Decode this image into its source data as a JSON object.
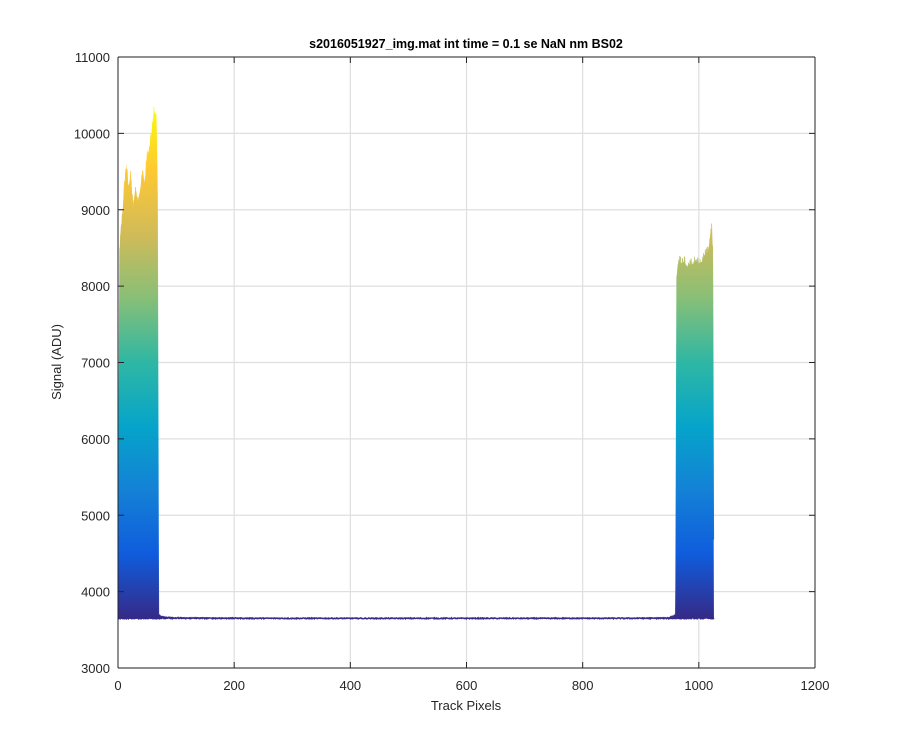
{
  "chart_data": {
    "type": "area",
    "title": "s2016051927_img.mat int time = 0.1 se  NaN nm BS02",
    "xlabel": "Track Pixels",
    "ylabel": "Signal (ADU)",
    "xlim": [
      0,
      1200
    ],
    "ylim": [
      3000,
      11000
    ],
    "xticks": [
      "0",
      "200",
      "400",
      "600",
      "800",
      "1000",
      "1200"
    ],
    "yticks": [
      "3000",
      "4000",
      "5000",
      "6000",
      "7000",
      "8000",
      "9000",
      "10000",
      "11000"
    ],
    "grid": true,
    "colormap": [
      "#352a87",
      "#0f5cdd",
      "#1481d6",
      "#06a4ca",
      "#2eb7a4",
      "#87bf77",
      "#d1bb59",
      "#fec832",
      "#f9fb0e"
    ],
    "baseline": 3650,
    "series": [
      {
        "x": [
          0,
          3,
          6,
          10,
          14,
          18,
          22,
          26,
          30,
          34,
          38,
          42,
          46,
          50,
          54,
          58,
          62,
          66,
          68,
          70,
          74,
          80,
          100
        ],
        "values": [
          4200,
          8500,
          8800,
          9200,
          9600,
          9300,
          9450,
          9000,
          9300,
          9100,
          9250,
          9500,
          9350,
          9700,
          9800,
          10000,
          10300,
          10200,
          9200,
          3700,
          3680,
          3670,
          3660
        ]
      },
      {
        "x": [
          100,
          300,
          500,
          700,
          900,
          950
        ],
        "values": [
          3660,
          3650,
          3650,
          3650,
          3655,
          3660
        ]
      },
      {
        "x": [
          950,
          955,
          960,
          962,
          965,
          970,
          975,
          980,
          985,
          990,
          995,
          1000,
          1005,
          1010,
          1015,
          1018,
          1020,
          1022,
          1024,
          1026
        ],
        "values": [
          3670,
          3680,
          3700,
          8100,
          8350,
          8300,
          8320,
          8250,
          8300,
          8280,
          8350,
          8300,
          8320,
          8400,
          8450,
          8550,
          8700,
          8750,
          8500,
          3650
        ]
      }
    ]
  }
}
